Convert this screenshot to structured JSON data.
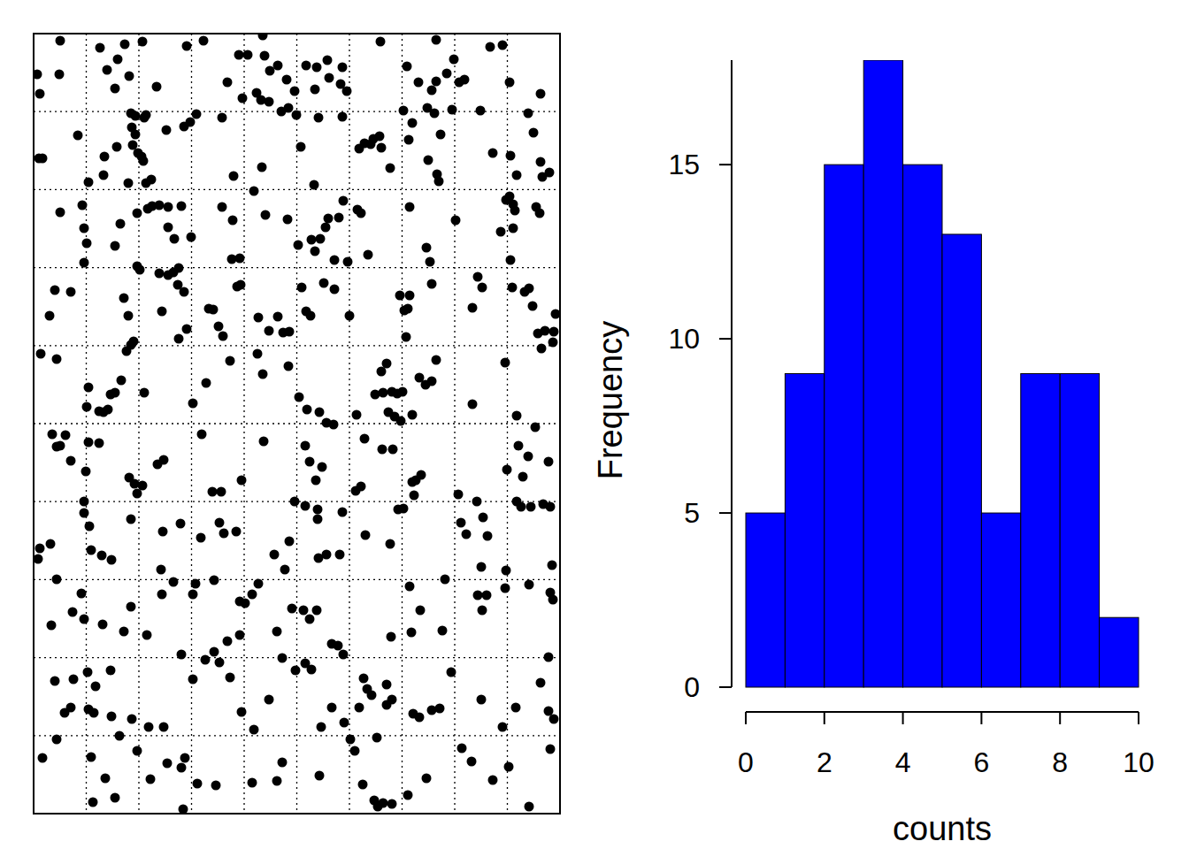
{
  "chart_data": [
    {
      "type": "scatter",
      "color": "#000000",
      "marker": "circle",
      "grid": true,
      "tick_labels": false,
      "xlim": [
        38,
        633
      ],
      "ylim": [
        920,
        38
      ],
      "xticks": [
        97.5,
        157,
        216.5,
        276,
        335.5,
        395,
        454.5,
        514,
        573.5
      ],
      "yticks": [
        126.2,
        214.4,
        302.6,
        390.8,
        479,
        567.2,
        655.4,
        743.6,
        831.8
      ],
      "x": [
        68,
        113,
        141,
        161,
        211,
        230,
        297,
        430,
        493,
        554,
        568,
        42,
        67,
        121,
        133,
        146,
        130,
        177,
        257,
        270,
        280,
        299,
        333,
        346,
        358,
        370,
        372,
        385,
        356,
        387,
        314,
        324,
        305,
        290,
        274,
        295,
        304,
        318,
        326,
        460,
        473,
        483,
        488,
        493,
        505,
        513,
        519,
        525,
        576,
        611,
        45,
        392,
        456,
        148,
        153,
        163,
        149,
        165,
        188,
        208,
        215,
        251,
        222,
        335,
        360,
        387,
        340,
        412,
        419,
        422,
        429,
        431,
        406,
        466,
        462,
        491,
        498,
        511,
        543,
        603,
        597,
        88,
        44,
        48,
        118,
        117,
        132,
        150,
        153,
        156,
        160,
        162,
        100,
        145,
        165,
        171,
        264,
        296,
        355,
        484,
        494,
        496,
        557,
        577,
        584,
        611,
        621,
        613,
        441,
        68,
        93,
        95,
        98,
        95,
        130,
        136,
        155,
        167,
        172,
        180,
        190,
        190,
        197,
        205,
        216,
        251,
        263,
        287,
        300,
        325,
        337,
        352,
        362,
        368,
        371,
        383,
        388,
        404,
        408,
        393,
        378,
        356,
        416,
        463,
        482,
        486,
        515,
        566,
        572,
        576,
        580,
        582,
        580,
        606,
        610,
        577,
        262,
        271,
        62,
        80,
        56,
        140,
        145,
        155,
        158,
        180,
        183,
        190,
        196,
        202,
        201,
        208,
        236,
        241,
        247,
        252,
        268,
        272,
        292,
        304,
        314,
        320,
        327,
        341,
        346,
        351,
        366,
        378,
        395,
        452,
        457,
        461,
        463,
        459,
        488,
        534,
        545,
        540,
        579,
        598,
        602,
        608,
        616,
        628,
        626,
        593,
        211,
        202,
        151,
        46,
        64,
        100,
        98,
        112,
        117,
        122,
        125,
        130,
        137,
        148,
        143,
        163,
        218,
        233,
        260,
        291,
        297,
        326,
        338,
        347,
        361,
        369,
        377,
        403,
        424,
        431,
        437,
        433,
        439,
        443,
        449,
        446,
        455,
        466,
        474,
        481,
        488,
        493,
        534,
        571,
        612,
        584,
        625,
        59,
        64,
        74,
        68,
        80,
        97,
        100,
        112,
        146,
        152,
        161,
        155,
        178,
        185,
        228,
        240,
        250,
        273,
        298,
        345,
        350,
        357,
        364,
        402,
        408,
        412,
        432,
        444,
        453,
        466,
        470,
        476,
        518,
        573,
        586,
        597,
        605,
        620,
        591,
        450,
        468,
        95,
        95,
        101,
        103,
        57,
        45,
        43,
        64,
        148,
        184,
        204,
        227,
        248,
        253,
        267,
        310,
        327,
        333,
        345,
        359,
        359,
        360,
        369,
        384,
        387,
        413,
        441,
        456,
        521,
        527,
        539,
        546,
        551,
        544,
        572,
        584,
        589,
        600,
        614,
        622,
        624,
        115,
        126,
        182,
        92,
        82,
        58,
        95,
        116,
        148,
        140,
        183,
        196,
        218,
        221,
        242,
        271,
        277,
        285,
        292,
        271,
        257,
        242,
        248,
        205,
        232,
        313,
        322,
        330,
        343,
        350,
        358,
        375,
        382,
        388,
        352,
        463,
        475,
        465,
        442,
        503,
        540,
        550,
        545,
        571,
        598,
        622,
        625,
        620,
        166,
        500,
        62,
        83,
        99,
        125,
        108,
        73,
        80,
        100,
        106,
        126,
        135,
        149,
        168,
        185,
        218,
        260,
        273,
        287,
        304,
        319,
        334,
        345,
        363,
        375,
        389,
        396,
        401,
        406,
        411,
        415,
        420,
        437,
        437,
        443,
        467,
        474,
        488,
        497,
        510,
        544,
        568,
        583,
        611,
        620,
        626,
        426,
        64,
        48,
        103,
        189,
        209,
        205,
        207,
        155,
        170,
        130,
        105,
        119,
        223,
        244,
        285,
        313,
        319,
        361,
        410,
        423,
        427,
        433,
        443,
        461,
        482,
        522,
        533,
        557,
        575,
        598,
        622
      ],
      "values": [
        46,
        54,
        50,
        47,
        52,
        46,
        40,
        47,
        45,
        53,
        51,
        84,
        84,
        79,
        67,
        86,
        100,
        98,
        93,
        62,
        62,
        63,
        103,
        74,
        76,
        68,
        88,
        95,
        101,
        76,
        74,
        90,
        80,
        105,
        111,
        113,
        115,
        126,
        122,
        75,
        93,
        122,
        102,
        92,
        83,
        67,
        93,
        90,
        93,
        106,
        106,
        103,
        125,
        128,
        131,
        133,
        144,
        130,
        147,
        143,
        138,
        133,
        129,
        130,
        133,
        132,
        166,
        162,
        163,
        157,
        154,
        167,
        168,
        139,
        158,
        128,
        152,
        124,
        125,
        150,
        128,
        153,
        179,
        179,
        177,
        198,
        166,
        164,
        152,
        173,
        177,
        182,
        206,
        207,
        207,
        203,
        199,
        189,
        209,
        181,
        197,
        205,
        173,
        176,
        198,
        183,
        195,
        200,
        190,
        240,
        232,
        258,
        275,
        297,
        278,
        253,
        241,
        236,
        233,
        232,
        234,
        257,
        270,
        233,
        268,
        234,
        249,
        216,
        243,
        248,
        277,
        271,
        270,
        257,
        247,
        246,
        227,
        237,
        241,
        296,
        294,
        284,
        288,
        234,
        280,
        296,
        249,
        262,
        226,
        222,
        231,
        238,
        258,
        234,
        241,
        294,
        293,
        292,
        328,
        330,
        357,
        337,
        357,
        301,
        305,
        309,
        352,
        311,
        308,
        303,
        322,
        330,
        349,
        350,
        369,
        380,
        324,
        322,
        359,
        374,
        358,
        376,
        375,
        325,
        352,
        357,
        320,
        327,
        357,
        334,
        351,
        349,
        334,
        381,
        321,
        348,
        325,
        313,
        325,
        326,
        346,
        377,
        374,
        355,
        375,
        330,
        372,
        383,
        386,
        400,
        406,
        438,
        460,
        465,
        466,
        463,
        446,
        444,
        430,
        390,
        397,
        444,
        456,
        433,
        408,
        400,
        423,
        414,
        449,
        463,
        466,
        478,
        480,
        469,
        446,
        420,
        411,
        444,
        466,
        443,
        445,
        471,
        443,
        469,
        427,
        435,
        431,
        407,
        457,
        410,
        394,
        470,
        387,
        491,
        505,
        492,
        504,
        521,
        533,
        500,
        501,
        540,
        547,
        549,
        558,
        525,
        520,
        491,
        556,
        556,
        543,
        499,
        504,
        522,
        543,
        528,
        555,
        550,
        496,
        508,
        508,
        476,
        545,
        543,
        537,
        559,
        531,
        504,
        516,
        483,
        522,
        539,
        576,
        560,
        567,
        580,
        595,
        622,
        615,
        620,
        632,
        655,
        587,
        601,
        592,
        608,
        591,
        603,
        601,
        627,
        612,
        567,
        572,
        576,
        587,
        631,
        627,
        627,
        579,
        605,
        615,
        575,
        591,
        604,
        567,
        585,
        606,
        641,
        645,
        567,
        573,
        573,
        570,
        573,
        639,
        628,
        633,
        644,
        671,
        692,
        707,
        700,
        706,
        686,
        714,
        672,
        658,
        672,
        660,
        656,
        680,
        682,
        672,
        660,
        718,
        725,
        737,
        749,
        740,
        746,
        714,
        644,
        688,
        690,
        700,
        690,
        728,
        730,
        740,
        757,
        663,
        690,
        715,
        720,
        655,
        673,
        673,
        690,
        665,
        661,
        670,
        678,
        743,
        718,
        713,
        770,
        768,
        760,
        758,
        776,
        806,
        800,
        802,
        806,
        810,
        832,
        813,
        822,
        822,
        768,
        766,
        805,
        825,
        791,
        744,
        758,
        750,
        822,
        800,
        817,
        836,
        849,
        800,
        767,
        779,
        786,
        774,
        797,
        791,
        807,
        811,
        803,
        801,
        760,
        791,
        822,
        800,
        772,
        804,
        813,
        834,
        836,
        857,
        856,
        863,
        857,
        868,
        915,
        849,
        881,
        902,
        907,
        880,
        886,
        888,
        885,
        883,
        862,
        877,
        887,
        905,
        912,
        908,
        909,
        899,
        880,
        846,
        861,
        882,
        867,
        912,
        847
      ]
    },
    {
      "type": "histogram",
      "color": "#0000ff",
      "x_label": "counts",
      "y_label": "Frequency",
      "bins": [
        0,
        1,
        2,
        3,
        4,
        5,
        6,
        7,
        8,
        9,
        10
      ],
      "values": [
        5,
        9,
        15,
        18,
        15,
        13,
        5,
        9,
        9,
        2
      ],
      "xlim": [
        0,
        10
      ],
      "xticks": [
        0,
        2,
        4,
        6,
        8,
        10
      ],
      "ylim": [
        0,
        18
      ],
      "yticks": [
        0,
        5,
        10,
        15
      ]
    }
  ]
}
